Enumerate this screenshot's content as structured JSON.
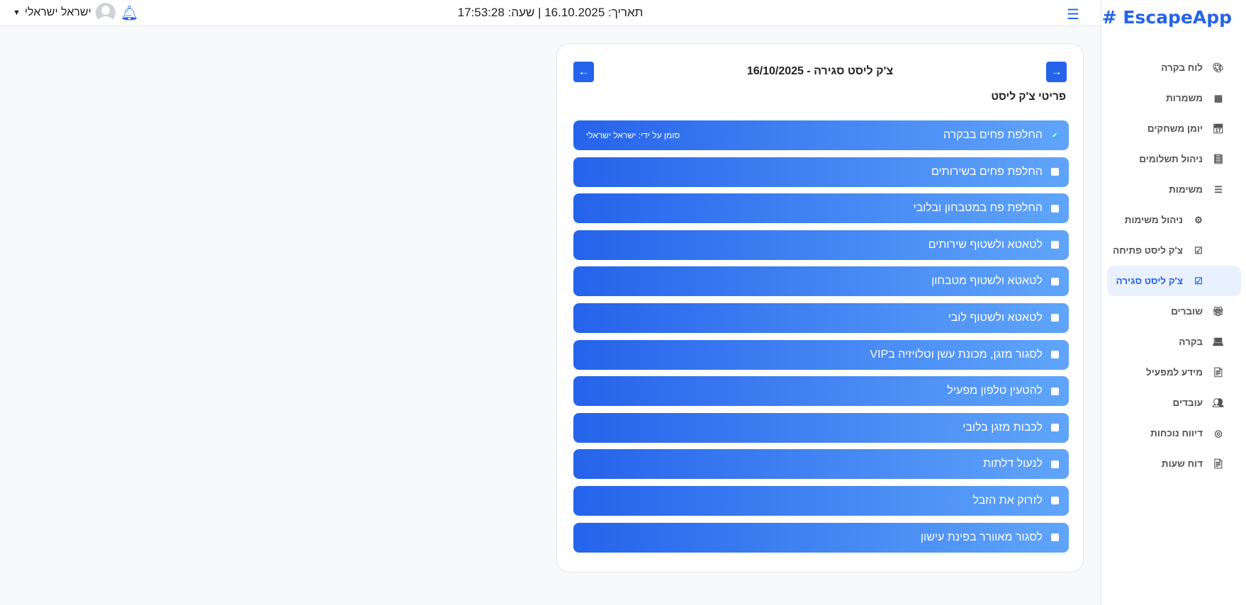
{
  "app": {
    "name": "EscapeApp",
    "logo_icon": "hash-icon"
  },
  "header": {
    "datetime": "תאריך: 16.10.2025 | שעה: 17:53:28",
    "user_name": "ישראל ישראלי"
  },
  "sidebar": {
    "items": [
      {
        "label": "לוח בקרה",
        "icon": "🎨"
      },
      {
        "label": "משמרות",
        "icon": "▦"
      },
      {
        "label": "יומן משחקים",
        "icon": "📅"
      },
      {
        "label": "ניהול תשלומים",
        "icon": "📘"
      },
      {
        "label": "משימות",
        "icon": "☰"
      },
      {
        "label": "ניהול משימות",
        "icon": "⚙"
      },
      {
        "label": "צ'ק ליסט פתיחה",
        "icon": "☑"
      },
      {
        "label": "צ'ק ליסט סגירה",
        "icon": "☑",
        "active": true
      },
      {
        "label": "שוברים",
        "icon": "🎁"
      },
      {
        "label": "בקרה",
        "icon": "💻"
      },
      {
        "label": "מידע למפעיל",
        "icon": "📄"
      },
      {
        "label": "עובדים",
        "icon": "👥"
      },
      {
        "label": "דיווח נוכחות",
        "icon": "◎"
      },
      {
        "label": "דוח שעות",
        "icon": "📄"
      }
    ]
  },
  "card": {
    "title": "צ'ק ליסט סגירה - 16/10/2025",
    "section_title": "פריטי צ'ק ליסט",
    "items": [
      {
        "label": "החלפת פחים בבקרה",
        "checked": true,
        "marked_by": "סומן על ידי: ישראל ישראלי"
      },
      {
        "label": "החלפת פחים בשירותים",
        "checked": false
      },
      {
        "label": "החלפת פח במטבחון ובלובי",
        "checked": false
      },
      {
        "label": "לטאטא ולשטוף שירותים",
        "checked": false
      },
      {
        "label": "לטאטא ולשטוף מטבחון",
        "checked": false
      },
      {
        "label": "לטאטא ולשטוף לובי",
        "checked": false
      },
      {
        "label": "לסגור מזגן, מכונת עשן וטלויזיה בVIP",
        "checked": false
      },
      {
        "label": "להטעין טלפון מפעיל",
        "checked": false
      },
      {
        "label": "לכבות מזגן בלובי",
        "checked": false
      },
      {
        "label": "לנעול דלתות",
        "checked": false
      },
      {
        "label": "לזרוק את הזבל",
        "checked": false
      },
      {
        "label": "לסגור מאוורר בפינת עישון",
        "checked": false
      }
    ]
  },
  "colors": {
    "accent": "#2563eb",
    "gradient_end": "#60a5fa",
    "active_bg": "#eaf1fe"
  }
}
